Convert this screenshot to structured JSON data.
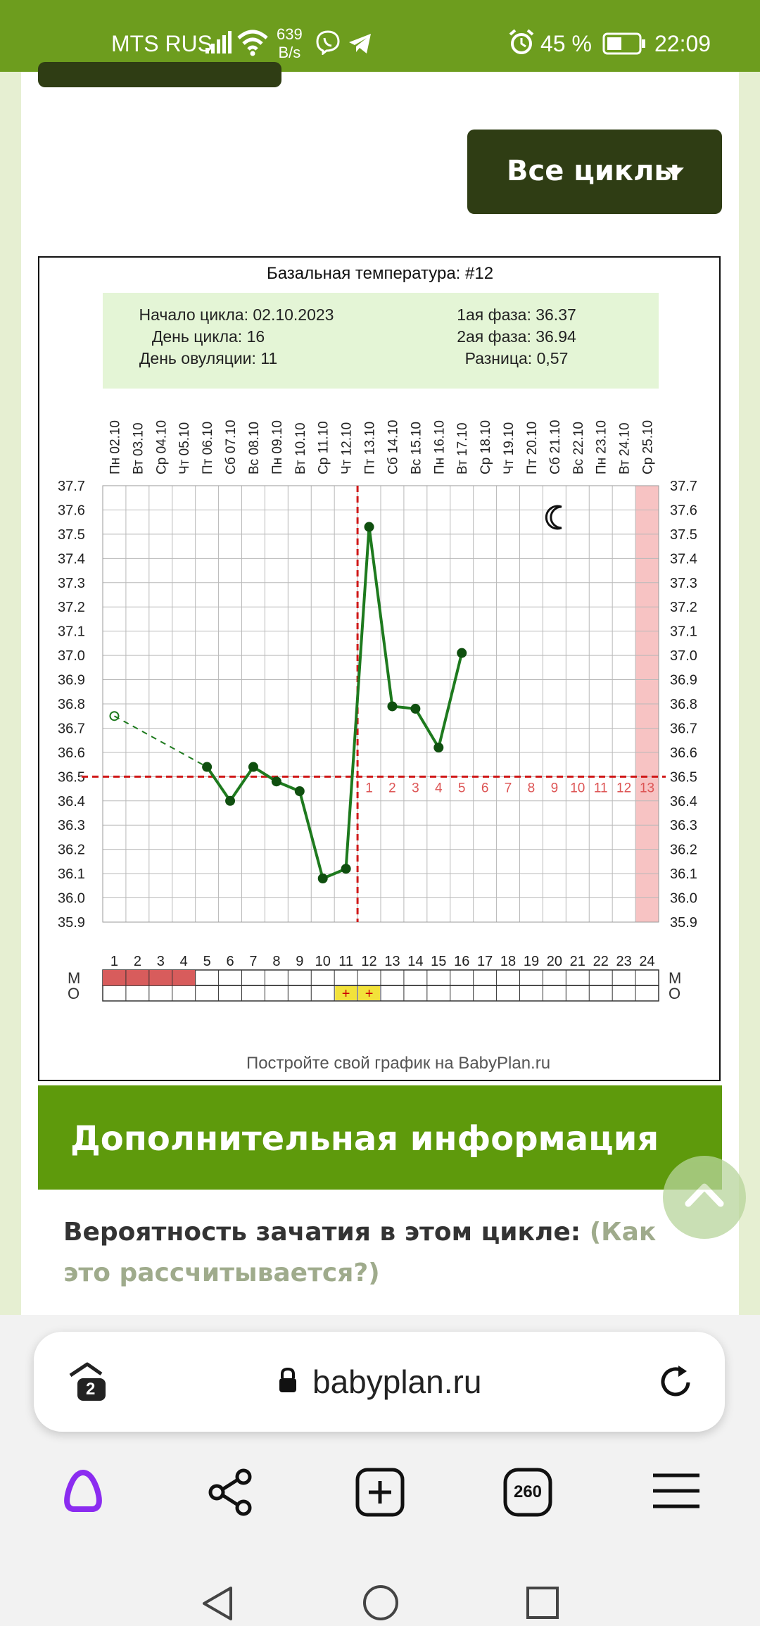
{
  "status_bar": {
    "carrier": "MTS RUS",
    "net_speed_value": "639",
    "net_speed_unit": "B/s",
    "battery_percent": "45 %",
    "time": "22:09"
  },
  "header": {
    "all_cycles_button": "Все циклы"
  },
  "chart": {
    "title": "Базальная температура: #12",
    "info": {
      "cycle_start": "Начало цикла: 02.10.2023",
      "cycle_day": "День цикла: 16",
      "ovulation_day": "День овуляции: 11",
      "phase1": "1ая фаза: 36.37",
      "phase2": "2ая фаза: 36.94",
      "difference": "Разница: 0,57"
    },
    "row_labels": {
      "m": "М",
      "o": "О"
    },
    "footer": "Постройте свой график на BabyPlan.ru"
  },
  "chart_data": {
    "type": "line",
    "title": "Базальная температура: #12",
    "days": [
      1,
      2,
      3,
      4,
      5,
      6,
      7,
      8,
      9,
      10,
      11,
      12,
      13,
      14,
      15,
      16,
      17,
      18,
      19,
      20,
      21,
      22,
      23,
      24
    ],
    "dates": [
      "02.10",
      "03.10",
      "04.10",
      "05.10",
      "06.10",
      "07.10",
      "08.10",
      "09.10",
      "10.10",
      "11.10",
      "12.10",
      "13.10",
      "14.10",
      "15.10",
      "16.10",
      "17.10",
      "18.10",
      "19.10",
      "20.10",
      "21.10",
      "22.10",
      "23.10",
      "24.10",
      "25.10"
    ],
    "weekdays": [
      "Пн",
      "Вт",
      "Ср",
      "Чт",
      "Пт",
      "Сб",
      "Вс",
      "Пн",
      "Вт",
      "Ср",
      "Чт",
      "Пт",
      "Сб",
      "Вс",
      "Пн",
      "Вт",
      "Ср",
      "Чт",
      "Пт",
      "Сб",
      "Вс",
      "Пн",
      "Вт",
      "Ср"
    ],
    "y_ticks": [
      "37.7",
      "37.6",
      "37.5",
      "37.4",
      "37.3",
      "37.2",
      "37.1",
      "37.0",
      "36.9",
      "36.8",
      "36.7",
      "36.6",
      "36.5",
      "36.4",
      "36.3",
      "36.2",
      "36.1",
      "36.0",
      "35.9"
    ],
    "ylim": [
      35.9,
      37.7
    ],
    "series": [
      {
        "style": "dashed",
        "points": [
          [
            1,
            36.75
          ],
          [
            5,
            36.54
          ]
        ]
      },
      {
        "style": "solid",
        "points": [
          [
            5,
            36.54
          ],
          [
            6,
            36.4
          ],
          [
            7,
            36.54
          ],
          [
            8,
            36.48
          ],
          [
            9,
            36.44
          ],
          [
            10,
            36.08
          ],
          [
            11,
            36.12
          ],
          [
            12,
            37.53
          ],
          [
            13,
            36.79
          ],
          [
            14,
            36.78
          ],
          [
            15,
            36.62
          ],
          [
            16,
            37.01
          ]
        ]
      }
    ],
    "coverline": 36.5,
    "ovulation_day": 11,
    "post_ovulation_labels": [
      "1",
      "2",
      "3",
      "4",
      "5",
      "6",
      "7",
      "8",
      "9",
      "10",
      "11",
      "12",
      "13"
    ],
    "highlighted_day": 24,
    "menstruation_days": [
      1,
      2,
      3,
      4
    ],
    "intercourse_days": [
      11,
      12
    ],
    "intercourse_mark": "+",
    "colors": {
      "temperature_line": "#1e7a1e",
      "guide_line": "#d01818",
      "menstruation": "#d85c5c",
      "highlight": "#f7c3c3",
      "info_box": "#e4f5d6"
    }
  },
  "additional": {
    "heading": "Дополнительная информация",
    "probability_label": "Вероятность зачатия в этом цикле:",
    "probability_link": "(Как это рассчитывается?)"
  },
  "browser": {
    "url": "babyplan.ru",
    "tabs_count": "2",
    "tab_total": "260"
  }
}
